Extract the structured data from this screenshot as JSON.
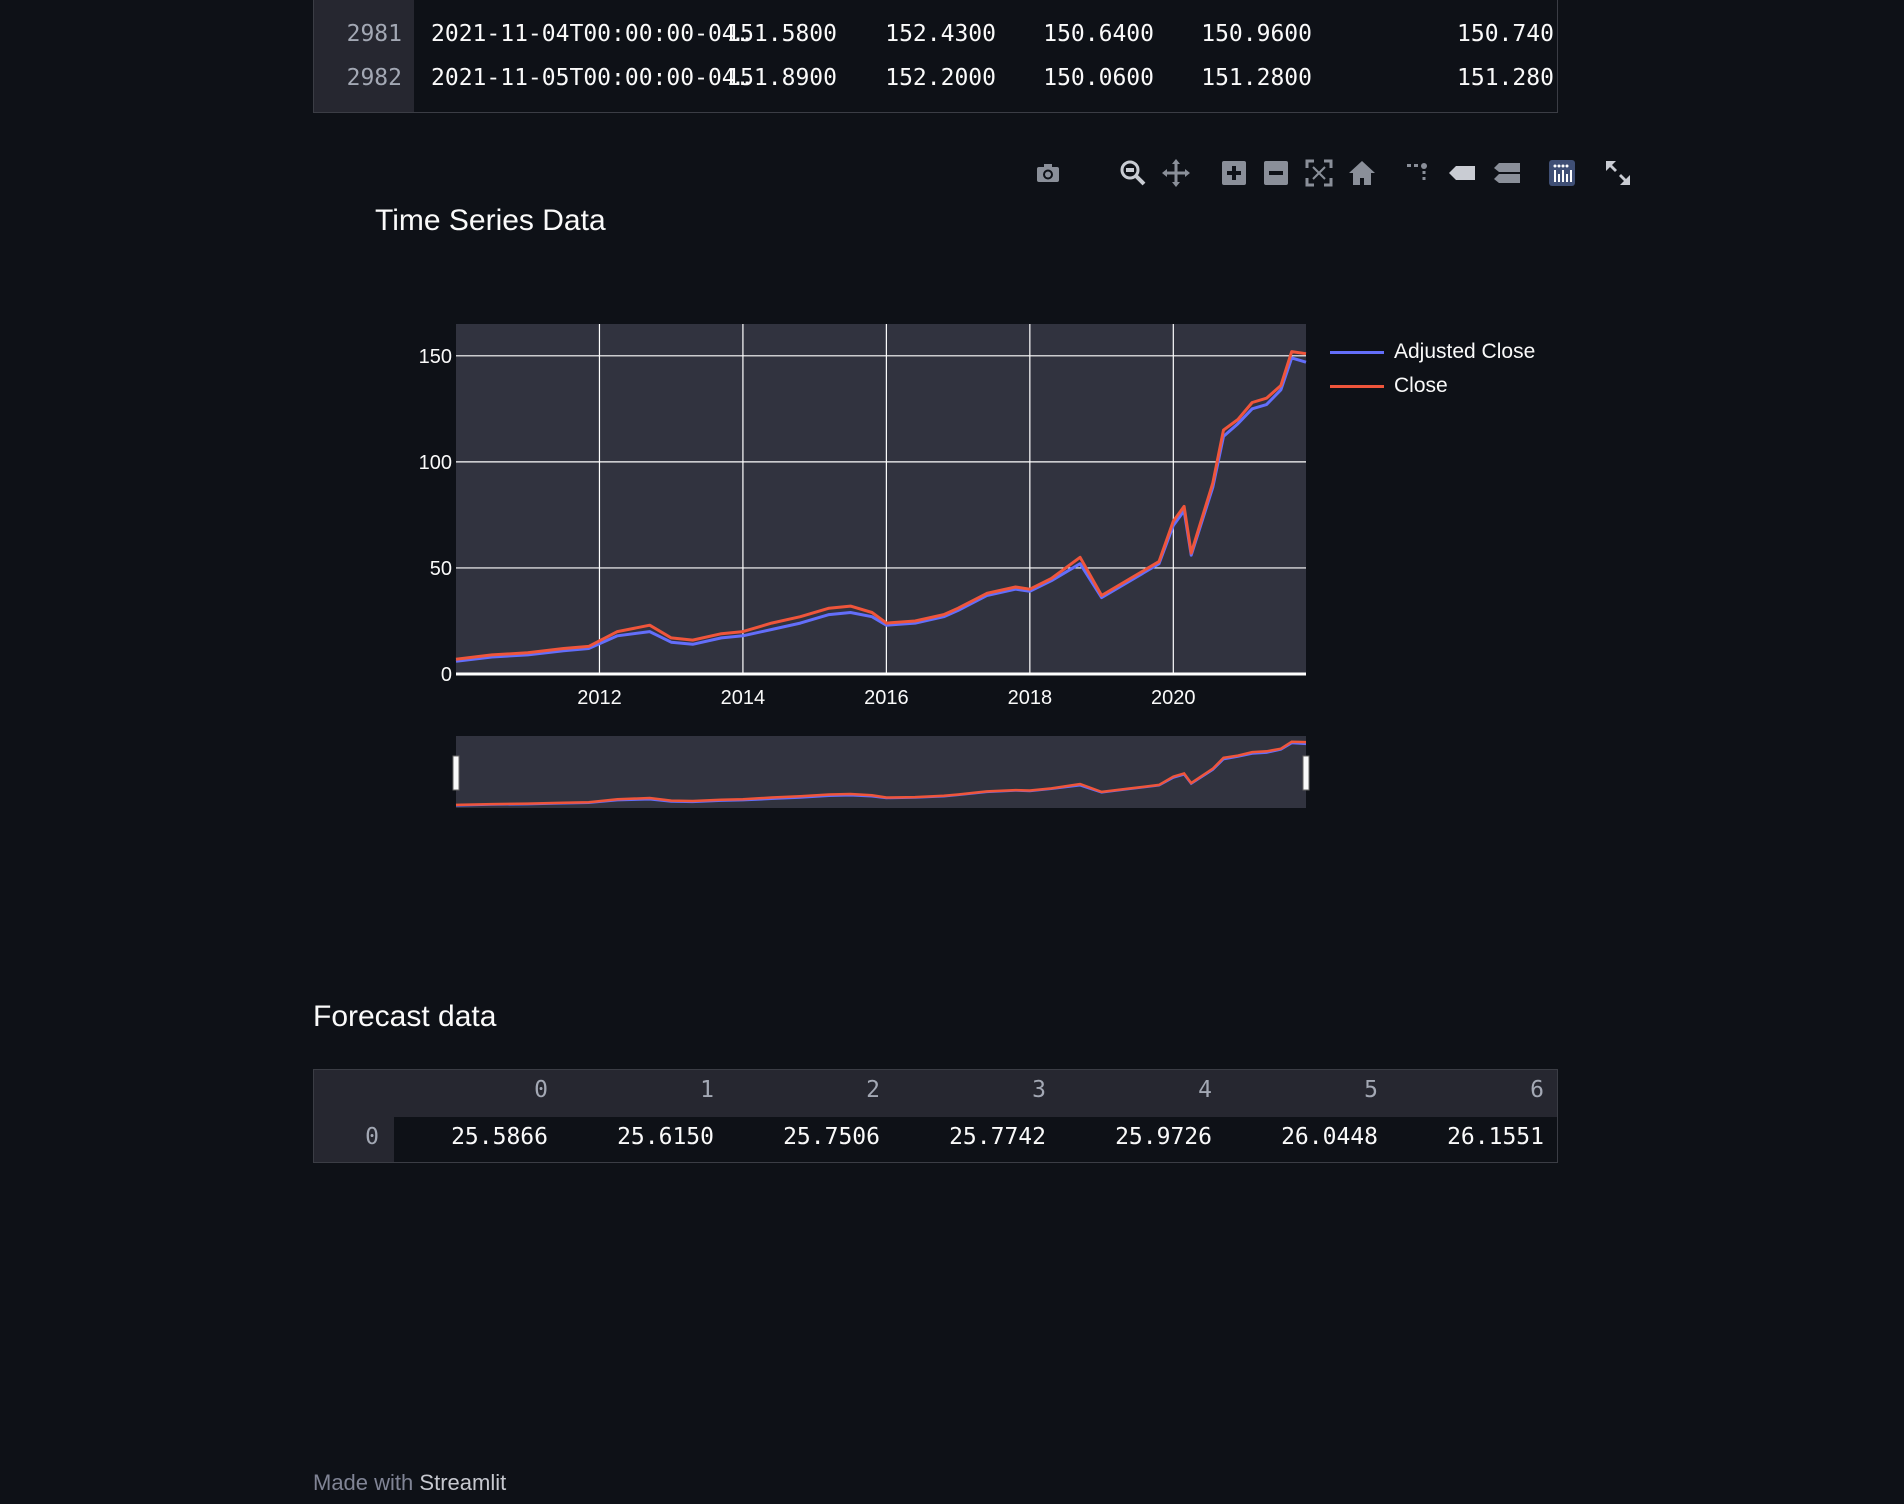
{
  "top_table": {
    "rows": [
      {
        "index": "2981",
        "date": "2021-11-04T00:00:00-04…",
        "values": [
          "151.5800",
          "152.4300",
          "150.6400",
          "150.9600",
          "150.740"
        ]
      },
      {
        "index": "2982",
        "date": "2021-11-05T00:00:00-04…",
        "values": [
          "151.8900",
          "152.2000",
          "150.0600",
          "151.2800",
          "151.280"
        ]
      }
    ]
  },
  "modebar": {
    "icons": [
      "camera-icon",
      "zoom-icon",
      "pan-icon",
      "zoom-in-icon",
      "zoom-out-icon",
      "autoscale-icon",
      "reset-axes-icon",
      "spike-lines-icon",
      "hover-closest-icon",
      "hover-compare-icon",
      "plotly-logo-icon",
      "fullscreen-icon"
    ]
  },
  "chart": {
    "title": "Time Series Data",
    "colors": {
      "adjusted": "#636efa",
      "close": "#ef553b",
      "plot_bg": "#31333f",
      "grid": "#ffffff"
    }
  },
  "chart_data": {
    "type": "line",
    "title": "Time Series Data",
    "xlabel": "",
    "ylabel": "",
    "xlim": [
      2010.0,
      2021.85
    ],
    "ylim": [
      0,
      165
    ],
    "xticks": [
      "2012",
      "2014",
      "2016",
      "2018",
      "2020"
    ],
    "xtick_values": [
      2012,
      2014,
      2016,
      2018,
      2020
    ],
    "yticks": [
      "0",
      "50",
      "100",
      "150"
    ],
    "ytick_values": [
      0,
      50,
      100,
      150
    ],
    "grid": true,
    "legend_position": "top-right",
    "rangeslider": true,
    "x": [
      2010.0,
      2010.5,
      2011.0,
      2011.5,
      2011.85,
      2012.25,
      2012.7,
      2013.0,
      2013.3,
      2013.7,
      2014.0,
      2014.4,
      2014.8,
      2015.2,
      2015.5,
      2015.8,
      2016.0,
      2016.4,
      2016.8,
      2017.0,
      2017.4,
      2017.8,
      2018.0,
      2018.3,
      2018.7,
      2019.0,
      2019.4,
      2019.8,
      2020.0,
      2020.15,
      2020.25,
      2020.55,
      2020.7,
      2020.9,
      2021.1,
      2021.3,
      2021.5,
      2021.65,
      2021.85
    ],
    "series": [
      {
        "name": "Adjusted Close",
        "values": [
          6,
          8,
          9,
          11,
          12,
          18,
          20,
          15,
          14,
          17,
          18,
          21,
          24,
          28,
          29,
          27,
          23,
          24,
          27,
          30,
          37,
          40,
          39,
          44,
          52,
          36,
          44,
          52,
          70,
          77,
          56,
          88,
          112,
          118,
          125,
          127,
          134,
          149,
          147
        ]
      },
      {
        "name": "Close",
        "values": [
          7,
          9,
          10,
          12,
          13,
          20,
          23,
          17,
          16,
          19,
          20,
          24,
          27,
          31,
          32,
          29,
          24,
          25,
          28,
          31,
          38,
          41,
          40,
          45,
          55,
          37,
          45,
          53,
          72,
          79,
          57,
          90,
          115,
          120,
          128,
          130,
          136,
          152,
          151
        ]
      }
    ]
  },
  "forecast": {
    "title": "Forecast data",
    "columns": [
      "0",
      "1",
      "2",
      "3",
      "4",
      "5",
      "6"
    ],
    "row_index": "0",
    "values": [
      "25.5866",
      "25.6150",
      "25.7506",
      "25.7742",
      "25.9726",
      "26.0448",
      "26.1551"
    ]
  },
  "footer": {
    "prefix": "Made with",
    "brand": "Streamlit"
  }
}
